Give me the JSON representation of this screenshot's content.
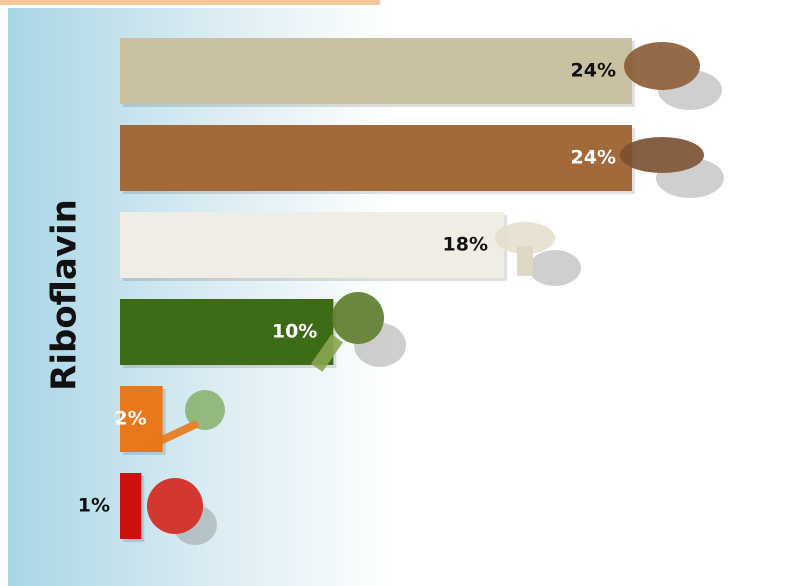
{
  "chart_data": {
    "type": "bar",
    "orientation": "horizontal",
    "title": "Riboflavin",
    "categories": [
      null,
      null,
      null,
      null,
      null,
      null
    ],
    "values": [
      24,
      24,
      18,
      10,
      2,
      1
    ],
    "value_labels": [
      "24%",
      "24%",
      "18%",
      "10%",
      "2%",
      "1%"
    ],
    "colors": [
      "#c9c1a1",
      "#a2693a",
      "#efede4",
      "#3e6b15",
      "#e9781a",
      "#cc1111"
    ]
  }
}
